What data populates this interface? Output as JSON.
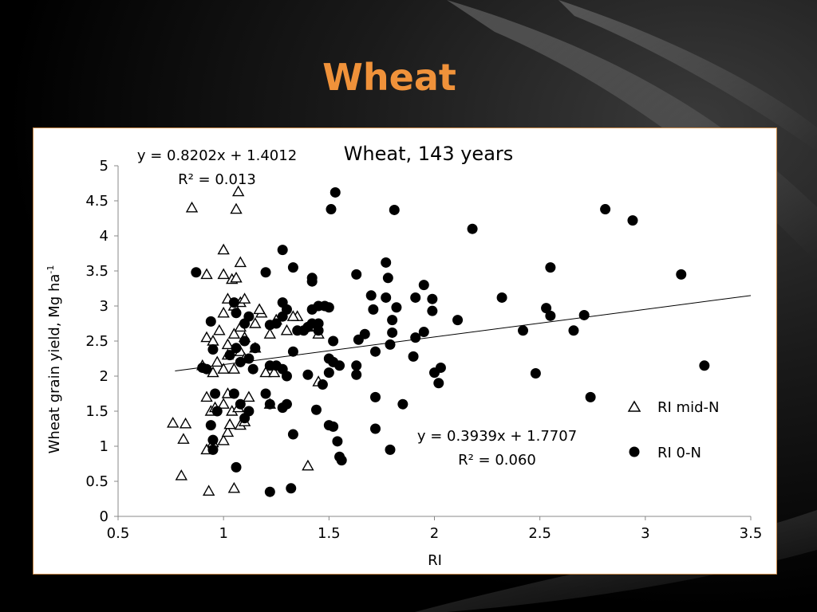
{
  "slide": {
    "title": "Wheat"
  },
  "colors": {
    "title": "#f0923a",
    "panel_border": "#c98a4a",
    "series_fill": "#000000"
  },
  "chart_data": {
    "type": "scatter",
    "title": "Wheat, 143 years",
    "xlabel": "RI",
    "ylabel_main": "Wheat grain yield, Mg ha",
    "ylabel_sup": "-1",
    "xlim": [
      0.5,
      3.5
    ],
    "ylim": [
      0,
      5
    ],
    "xticks": [
      "0.5",
      "1",
      "1.5",
      "2",
      "2.5",
      "3",
      "3.5"
    ],
    "yticks": [
      "0",
      "0.5",
      "1",
      "1.5",
      "2",
      "2.5",
      "3",
      "3.5",
      "4",
      "4.5",
      "5"
    ],
    "grid": false,
    "legend_position": "right",
    "series": [
      {
        "name": "RI mid-N",
        "marker": "open-triangle",
        "trendline": {
          "slope": 0.8202,
          "intercept": 1.4012,
          "drawn": false
        },
        "equation": "y = 0.8202x + 1.4012",
        "r2": "R² = 0.013",
        "points": [
          [
            0.85,
            4.4
          ],
          [
            1.06,
            4.38
          ],
          [
            1.07,
            4.63
          ],
          [
            0.8,
            0.58
          ],
          [
            0.93,
            0.36
          ],
          [
            1.05,
            0.4
          ],
          [
            0.76,
            1.33
          ],
          [
            0.81,
            1.1
          ],
          [
            0.82,
            1.32
          ],
          [
            0.92,
            0.95
          ],
          [
            0.95,
            1.05
          ],
          [
            1.0,
            1.08
          ],
          [
            1.02,
            1.2
          ],
          [
            1.03,
            1.31
          ],
          [
            1.08,
            1.3
          ],
          [
            1.1,
            1.35
          ],
          [
            0.92,
            1.7
          ],
          [
            0.94,
            1.5
          ],
          [
            0.96,
            1.55
          ],
          [
            1.0,
            1.6
          ],
          [
            1.02,
            1.75
          ],
          [
            1.04,
            1.5
          ],
          [
            1.07,
            1.55
          ],
          [
            1.12,
            1.7
          ],
          [
            0.9,
            2.15
          ],
          [
            0.95,
            2.05
          ],
          [
            0.97,
            2.2
          ],
          [
            1.0,
            2.1
          ],
          [
            1.02,
            2.3
          ],
          [
            1.05,
            2.1
          ],
          [
            1.08,
            2.35
          ],
          [
            1.1,
            2.25
          ],
          [
            1.15,
            2.4
          ],
          [
            1.2,
            2.05
          ],
          [
            0.92,
            2.55
          ],
          [
            0.95,
            2.5
          ],
          [
            0.98,
            2.65
          ],
          [
            1.02,
            2.45
          ],
          [
            1.05,
            2.6
          ],
          [
            1.08,
            2.7
          ],
          [
            1.1,
            2.55
          ],
          [
            1.15,
            2.75
          ],
          [
            1.18,
            2.9
          ],
          [
            1.22,
            2.6
          ],
          [
            1.25,
            2.8
          ],
          [
            1.3,
            2.65
          ],
          [
            1.35,
            2.85
          ],
          [
            1.4,
            2.7
          ],
          [
            1.45,
            2.6
          ],
          [
            1.33,
            2.85
          ],
          [
            1.0,
            2.9
          ],
          [
            1.02,
            3.1
          ],
          [
            1.05,
            3.0
          ],
          [
            1.08,
            3.05
          ],
          [
            1.1,
            3.1
          ],
          [
            1.17,
            2.95
          ],
          [
            0.92,
            3.45
          ],
          [
            1.0,
            3.45
          ],
          [
            1.04,
            3.38
          ],
          [
            1.06,
            3.4
          ],
          [
            1.08,
            3.62
          ],
          [
            1.0,
            3.8
          ],
          [
            1.22,
            1.6
          ],
          [
            1.4,
            0.72
          ],
          [
            1.45,
            1.92
          ],
          [
            1.24,
            2.05
          ]
        ]
      },
      {
        "name": "RI 0-N",
        "marker": "filled-circle",
        "trendline": {
          "slope": 0.3939,
          "intercept": 1.7707,
          "drawn": true
        },
        "equation": "y = 0.3939x + 1.7707",
        "r2": "R² = 0.060",
        "points": [
          [
            0.87,
            3.48
          ],
          [
            0.94,
            2.78
          ],
          [
            0.95,
            2.38
          ],
          [
            0.92,
            2.1
          ],
          [
            0.9,
            2.12
          ],
          [
            0.96,
            1.75
          ],
          [
            0.97,
            1.5
          ],
          [
            0.94,
            1.3
          ],
          [
            0.95,
            1.09
          ],
          [
            0.95,
            0.95
          ],
          [
            1.06,
            0.7
          ],
          [
            1.05,
            1.75
          ],
          [
            1.08,
            1.6
          ],
          [
            1.1,
            1.4
          ],
          [
            1.12,
            1.5
          ],
          [
            1.03,
            2.3
          ],
          [
            1.06,
            2.4
          ],
          [
            1.08,
            2.2
          ],
          [
            1.1,
            2.5
          ],
          [
            1.12,
            2.25
          ],
          [
            1.14,
            2.1
          ],
          [
            1.06,
            2.9
          ],
          [
            1.1,
            2.75
          ],
          [
            1.12,
            2.85
          ],
          [
            1.15,
            2.4
          ],
          [
            1.05,
            3.05
          ],
          [
            1.2,
            3.48
          ],
          [
            1.22,
            2.73
          ],
          [
            1.25,
            2.75
          ],
          [
            1.28,
            2.85
          ],
          [
            1.28,
            3.05
          ],
          [
            1.3,
            2.95
          ],
          [
            1.28,
            3.8
          ],
          [
            1.33,
            3.55
          ],
          [
            1.42,
            3.4
          ],
          [
            1.42,
            3.35
          ],
          [
            1.22,
            2.15
          ],
          [
            1.25,
            2.15
          ],
          [
            1.28,
            2.1
          ],
          [
            1.3,
            2.0
          ],
          [
            1.33,
            2.35
          ],
          [
            1.2,
            1.75
          ],
          [
            1.22,
            1.6
          ],
          [
            1.28,
            1.55
          ],
          [
            1.3,
            1.6
          ],
          [
            1.33,
            1.17
          ],
          [
            1.22,
            0.35
          ],
          [
            1.32,
            0.4
          ],
          [
            1.35,
            2.65
          ],
          [
            1.38,
            2.65
          ],
          [
            1.4,
            2.7
          ],
          [
            1.42,
            2.75
          ],
          [
            1.45,
            2.75
          ],
          [
            1.45,
            2.65
          ],
          [
            1.42,
            2.95
          ],
          [
            1.45,
            3.0
          ],
          [
            1.48,
            3.0
          ],
          [
            1.5,
            2.98
          ],
          [
            1.4,
            2.02
          ],
          [
            1.47,
            1.88
          ],
          [
            1.5,
            2.05
          ],
          [
            1.5,
            2.25
          ],
          [
            1.52,
            2.2
          ],
          [
            1.55,
            2.15
          ],
          [
            1.52,
            2.5
          ],
          [
            1.44,
            1.52
          ],
          [
            1.5,
            1.3
          ],
          [
            1.52,
            1.28
          ],
          [
            1.54,
            1.07
          ],
          [
            1.55,
            0.85
          ],
          [
            1.56,
            0.8
          ],
          [
            1.51,
            4.38
          ],
          [
            1.53,
            4.62
          ],
          [
            1.63,
            3.45
          ],
          [
            1.67,
            2.6
          ],
          [
            1.64,
            2.52
          ],
          [
            1.63,
            2.15
          ],
          [
            1.63,
            2.02
          ],
          [
            1.7,
            3.15
          ],
          [
            1.71,
            2.95
          ],
          [
            1.72,
            2.35
          ],
          [
            1.72,
            1.7
          ],
          [
            1.72,
            1.25
          ],
          [
            1.77,
            3.62
          ],
          [
            1.77,
            3.12
          ],
          [
            1.78,
            3.4
          ],
          [
            1.8,
            2.8
          ],
          [
            1.8,
            2.62
          ],
          [
            1.79,
            2.45
          ],
          [
            1.82,
            2.98
          ],
          [
            1.81,
            4.37
          ],
          [
            1.79,
            0.95
          ],
          [
            1.85,
            1.6
          ],
          [
            1.9,
            2.28
          ],
          [
            1.91,
            2.55
          ],
          [
            1.91,
            3.12
          ],
          [
            1.95,
            3.3
          ],
          [
            1.95,
            2.63
          ],
          [
            1.99,
            2.93
          ],
          [
            1.99,
            3.1
          ],
          [
            2.0,
            2.05
          ],
          [
            2.02,
            1.9
          ],
          [
            2.03,
            2.12
          ],
          [
            2.11,
            2.8
          ],
          [
            2.18,
            4.1
          ],
          [
            2.32,
            3.12
          ],
          [
            2.42,
            2.65
          ],
          [
            2.48,
            2.04
          ],
          [
            2.53,
            2.97
          ],
          [
            2.55,
            2.86
          ],
          [
            2.55,
            3.55
          ],
          [
            2.66,
            2.65
          ],
          [
            2.71,
            2.87
          ],
          [
            2.74,
            1.7
          ],
          [
            2.81,
            4.38
          ],
          [
            2.94,
            4.22
          ],
          [
            3.17,
            3.45
          ],
          [
            3.28,
            2.15
          ]
        ]
      }
    ]
  }
}
